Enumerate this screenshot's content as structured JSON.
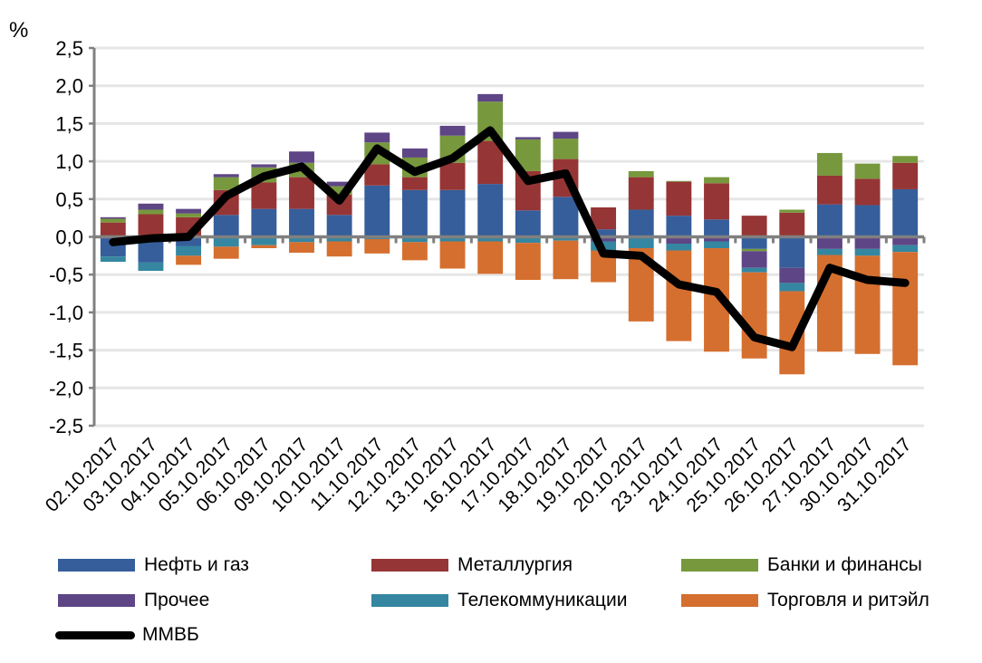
{
  "chart_data": {
    "type": "bar",
    "stacked": true,
    "title": "",
    "ylabel": "%",
    "xlabel": "",
    "ylim": [
      -2.5,
      2.5
    ],
    "yticks": [
      2.5,
      2.0,
      1.5,
      1.0,
      0.5,
      0.0,
      -0.5,
      -1.0,
      -1.5,
      -2.0,
      -2.5
    ],
    "ytick_labels": [
      "2,5",
      "2,0",
      "1,5",
      "1,0",
      "0,5",
      "0,0",
      "-0,5",
      "-1,0",
      "-1,5",
      "-2,0",
      "-2,5"
    ],
    "grid": true,
    "legend_position": "bottom",
    "categories": [
      "02.10.2017",
      "03.10.2017",
      "04.10.2017",
      "05.10.2017",
      "06.10.2017",
      "09.10.2017",
      "10.10.2017",
      "11.10.2017",
      "12.10.2017",
      "13.10.2017",
      "16.10.2017",
      "17.10.2017",
      "18.10.2017",
      "19.10.2017",
      "20.10.2017",
      "23.10.2017",
      "24.10.2017",
      "25.10.2017",
      "26.10.2017",
      "27.10.2017",
      "30.10.2017",
      "31.10.2017"
    ],
    "series": [
      {
        "name": "Нефть и газ",
        "color": "#355E9B",
        "values": [
          -0.26,
          -0.34,
          -0.12,
          0.29,
          0.37,
          0.37,
          0.29,
          0.68,
          0.62,
          0.62,
          0.7,
          0.35,
          0.53,
          0.1,
          0.36,
          0.28,
          0.23,
          -0.16,
          -0.41,
          0.43,
          0.42,
          0.63
        ]
      },
      {
        "name": "Металлургия",
        "color": "#963535",
        "values": [
          0.19,
          0.3,
          0.26,
          0.33,
          0.35,
          0.42,
          0.27,
          0.28,
          0.17,
          0.36,
          0.57,
          0.52,
          0.5,
          0.29,
          0.43,
          0.45,
          0.48,
          0.28,
          0.32,
          0.38,
          0.35,
          0.35
        ]
      },
      {
        "name": "Банки и финансы",
        "color": "#77983D",
        "values": [
          0.05,
          0.06,
          0.05,
          0.17,
          0.2,
          0.19,
          0.11,
          0.29,
          0.26,
          0.36,
          0.52,
          0.42,
          0.27,
          0.0,
          0.08,
          0.01,
          0.08,
          -0.03,
          0.04,
          0.3,
          0.2,
          0.09
        ]
      },
      {
        "name": "Прочее",
        "color": "#5E4585",
        "values": [
          0.02,
          0.08,
          0.06,
          0.04,
          0.04,
          0.15,
          0.06,
          0.13,
          0.12,
          0.13,
          0.1,
          0.03,
          0.09,
          -0.06,
          0.0,
          -0.09,
          -0.06,
          -0.22,
          -0.2,
          -0.16,
          -0.16,
          -0.11
        ]
      },
      {
        "name": "Телекоммуникации",
        "color": "#3586A0",
        "values": [
          -0.07,
          -0.11,
          -0.13,
          -0.13,
          -0.11,
          -0.07,
          -0.06,
          -0.03,
          -0.07,
          -0.06,
          -0.06,
          -0.08,
          -0.05,
          -0.12,
          -0.15,
          -0.09,
          -0.09,
          -0.06,
          -0.11,
          -0.08,
          -0.09,
          -0.09
        ]
      },
      {
        "name": "Торговля и ритэйл",
        "color": "#D56F2F",
        "values": [
          0.0,
          0.0,
          -0.12,
          -0.16,
          -0.04,
          -0.14,
          -0.2,
          -0.19,
          -0.24,
          -0.36,
          -0.43,
          -0.49,
          -0.51,
          -0.42,
          -0.97,
          -1.2,
          -1.37,
          -1.14,
          -1.1,
          -1.28,
          -1.3,
          -1.5
        ]
      }
    ],
    "line_series": {
      "name": "ММВБ",
      "color": "#000000",
      "values": [
        -0.07,
        -0.02,
        0.0,
        0.54,
        0.8,
        0.93,
        0.48,
        1.17,
        0.86,
        1.04,
        1.41,
        0.74,
        0.84,
        -0.22,
        -0.25,
        -0.63,
        -0.73,
        -1.33,
        -1.46,
        -0.41,
        -0.57,
        -0.61
      ]
    }
  },
  "legend": {
    "items": [
      {
        "label": "Нефть и газ",
        "color": "#355E9B",
        "kind": "bar"
      },
      {
        "label": "Металлургия",
        "color": "#963535",
        "kind": "bar"
      },
      {
        "label": "Банки и финансы",
        "color": "#77983D",
        "kind": "bar"
      },
      {
        "label": "Прочее",
        "color": "#5E4585",
        "kind": "bar"
      },
      {
        "label": "Телекоммуникации",
        "color": "#3586A0",
        "kind": "bar"
      },
      {
        "label": "Торговля и ритэйл",
        "color": "#D56F2F",
        "kind": "bar"
      },
      {
        "label": "ММВБ",
        "color": "#000000",
        "kind": "line"
      }
    ]
  },
  "unit_label": "%"
}
